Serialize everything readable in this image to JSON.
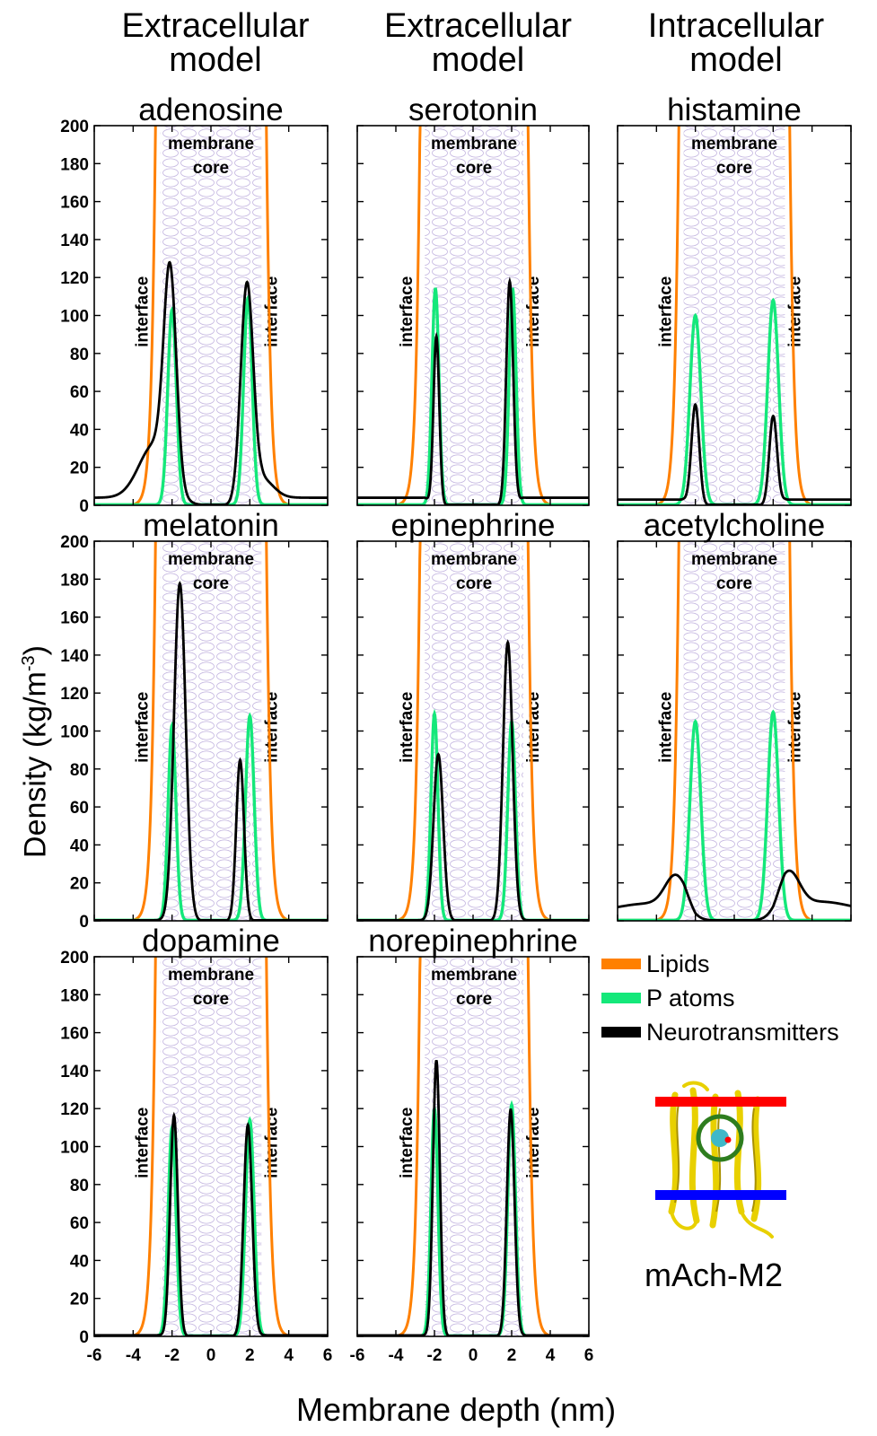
{
  "column_headers": [
    {
      "line1": "Extracellular",
      "line2": "model"
    },
    {
      "line1": "Extracellular",
      "line2": "model"
    },
    {
      "line1": "Intracellular",
      "line2": "model"
    }
  ],
  "ylabel_main": "Density (kg/m",
  "ylabel_exp": "-3",
  "ylabel_close": ")",
  "xlabel": "Membrane depth (nm)",
  "membrane_label": {
    "line1": "membrane",
    "line2": "core"
  },
  "interface_label": "interface",
  "legend": [
    {
      "label": "Lipids",
      "color": "#ff7f0e"
    },
    {
      "label": "P atoms",
      "color": "#00ee77"
    },
    {
      "label": "Neurotransmitters",
      "color": "#000000"
    }
  ],
  "protein_label": "mAch-M2",
  "colors": {
    "lipids": "#ff8000",
    "p_atoms": "#14e87a",
    "neuro": "#000000",
    "membrane_pattern": "#b8a8d8"
  },
  "chart_data": [
    {
      "type": "line",
      "title": "adenosine",
      "xlim": [
        -6,
        6
      ],
      "ylim": [
        0,
        200
      ],
      "y_ticks": [
        0,
        20,
        40,
        60,
        80,
        100,
        120,
        140,
        160,
        180,
        200
      ],
      "x_ticks": [
        -6,
        -4,
        -2,
        0,
        2,
        4,
        6
      ],
      "show_y_ticks": true,
      "show_x_ticks": false,
      "lipid_edges": [
        -2.6,
        2.6
      ],
      "series": [
        {
          "name": "P atoms",
          "peaks": [
            {
              "x": -2.0,
              "height": 103,
              "width": 0.22
            },
            {
              "x": 1.9,
              "height": 109,
              "width": 0.22
            }
          ],
          "base": 0.3
        },
        {
          "name": "Neurotransmitters",
          "peaks": [
            {
              "x": -2.1,
              "height": 114,
              "width": 0.32
            },
            {
              "x": 1.85,
              "height": 117,
              "width": 0.32
            }
          ],
          "shoulders": [
            {
              "x": -2.9,
              "height": 28,
              "width": 0.8
            },
            {
              "x": 2.6,
              "height": 10,
              "width": 0.6
            }
          ],
          "base": 4
        }
      ]
    },
    {
      "type": "line",
      "title": "serotonin",
      "xlim": [
        -6,
        6
      ],
      "ylim": [
        0,
        200
      ],
      "y_ticks": [
        0,
        20,
        40,
        60,
        80,
        100,
        120,
        140,
        160,
        180,
        200
      ],
      "x_ticks": [
        -6,
        -4,
        -2,
        0,
        2,
        4,
        6
      ],
      "show_y_ticks": false,
      "show_x_ticks": false,
      "lipid_edges": [
        -2.5,
        2.6
      ],
      "series": [
        {
          "name": "P atoms",
          "peaks": [
            {
              "x": -1.95,
              "height": 114,
              "width": 0.18
            },
            {
              "x": 2.05,
              "height": 114,
              "width": 0.18
            }
          ],
          "base": 0.3
        },
        {
          "name": "Neurotransmitters",
          "peaks": [
            {
              "x": -1.9,
              "height": 93,
              "width": 0.15
            },
            {
              "x": 1.9,
              "height": 122,
              "width": 0.18
            }
          ],
          "base": 4
        }
      ]
    },
    {
      "type": "line",
      "title": "histamine",
      "xlim": [
        -6,
        6
      ],
      "ylim": [
        0,
        200
      ],
      "y_ticks": [
        0,
        20,
        40,
        60,
        80,
        100,
        120,
        140,
        160,
        180,
        200
      ],
      "x_ticks": [
        -6,
        -4,
        -2,
        0,
        2,
        4,
        6
      ],
      "show_y_ticks": false,
      "show_x_ticks": false,
      "lipid_edges": [
        -2.6,
        2.6
      ],
      "series": [
        {
          "name": "P atoms",
          "peaks": [
            {
              "x": -2.0,
              "height": 100,
              "width": 0.28
            },
            {
              "x": 2.0,
              "height": 108,
              "width": 0.28
            }
          ],
          "base": 0.3
        },
        {
          "name": "Neurotransmitters",
          "peaks": [
            {
              "x": -2.0,
              "height": 56,
              "width": 0.2
            },
            {
              "x": 2.0,
              "height": 50,
              "width": 0.2
            }
          ],
          "base": 3
        }
      ]
    },
    {
      "type": "line",
      "title": "melatonin",
      "xlim": [
        -6,
        6
      ],
      "ylim": [
        0,
        200
      ],
      "y_ticks": [
        0,
        20,
        40,
        60,
        80,
        100,
        120,
        140,
        160,
        180,
        200
      ],
      "x_ticks": [
        -6,
        -4,
        -2,
        0,
        2,
        4,
        6
      ],
      "show_y_ticks": true,
      "show_x_ticks": false,
      "lipid_edges": [
        -2.6,
        2.6
      ],
      "series": [
        {
          "name": "P atoms",
          "peaks": [
            {
              "x": -2.0,
              "height": 103,
              "width": 0.2
            },
            {
              "x": 2.0,
              "height": 108,
              "width": 0.22
            }
          ],
          "base": 0.3
        },
        {
          "name": "Neurotransmitters",
          "peaks": [
            {
              "x": -1.6,
              "height": 178,
              "width": 0.3
            },
            {
              "x": 1.5,
              "height": 85,
              "width": 0.2
            }
          ],
          "base": 0.3
        }
      ]
    },
    {
      "type": "line",
      "title": "epinephrine",
      "xlim": [
        -6,
        6
      ],
      "ylim": [
        0,
        200
      ],
      "y_ticks": [
        0,
        20,
        40,
        60,
        80,
        100,
        120,
        140,
        160,
        180,
        200
      ],
      "x_ticks": [
        -6,
        -4,
        -2,
        0,
        2,
        4,
        6
      ],
      "show_y_ticks": false,
      "show_x_ticks": false,
      "lipid_edges": [
        -2.5,
        2.6
      ],
      "series": [
        {
          "name": "P atoms",
          "peaks": [
            {
              "x": -2.0,
              "height": 109,
              "width": 0.18
            },
            {
              "x": 2.0,
              "height": 105,
              "width": 0.2
            }
          ],
          "base": 0.3
        },
        {
          "name": "Neurotransmitters",
          "peaks": [
            {
              "x": -1.8,
              "height": 88,
              "width": 0.25
            },
            {
              "x": 1.8,
              "height": 147,
              "width": 0.25
            }
          ],
          "base": 0.3
        }
      ]
    },
    {
      "type": "line",
      "title": "acetylcholine",
      "xlim": [
        -6,
        6
      ],
      "ylim": [
        0,
        200
      ],
      "y_ticks": [
        0,
        20,
        40,
        60,
        80,
        100,
        120,
        140,
        160,
        180,
        200
      ],
      "x_ticks": [
        -6,
        -4,
        -2,
        0,
        2,
        4,
        6
      ],
      "show_y_ticks": false,
      "show_x_ticks": false,
      "lipid_edges": [
        -2.6,
        2.6
      ],
      "series": [
        {
          "name": "P atoms",
          "peaks": [
            {
              "x": -2.0,
              "height": 105,
              "width": 0.28
            },
            {
              "x": 2.0,
              "height": 110,
              "width": 0.28
            }
          ],
          "base": 0.3
        },
        {
          "name": "Neurotransmitters",
          "peaks": [
            {
              "x": -3.0,
              "height": 22,
              "width": 0.55
            },
            {
              "x": 2.8,
              "height": 24,
              "width": 0.55
            }
          ],
          "shoulders": [
            {
              "x": -4.5,
              "height": 4,
              "width": 1.4
            },
            {
              "x": 4.5,
              "height": 5,
              "width": 1.4
            }
          ],
          "base": 5
        }
      ]
    },
    {
      "type": "line",
      "title": "dopamine",
      "xlim": [
        -6,
        6
      ],
      "ylim": [
        0,
        200
      ],
      "y_ticks": [
        0,
        20,
        40,
        60,
        80,
        100,
        120,
        140,
        160,
        180,
        200
      ],
      "x_ticks": [
        -6,
        -4,
        -2,
        0,
        2,
        4,
        6
      ],
      "show_y_ticks": true,
      "show_x_ticks": true,
      "lipid_edges": [
        -2.6,
        2.6
      ],
      "series": [
        {
          "name": "P atoms",
          "peaks": [
            {
              "x": -2.0,
              "height": 110,
              "width": 0.2
            },
            {
              "x": 2.0,
              "height": 114,
              "width": 0.22
            }
          ],
          "base": 0.3
        },
        {
          "name": "Neurotransmitters",
          "peaks": [
            {
              "x": -1.9,
              "height": 117,
              "width": 0.2
            },
            {
              "x": 1.9,
              "height": 112,
              "width": 0.22
            }
          ],
          "base": 0.6
        }
      ]
    },
    {
      "type": "line",
      "title": "norepinephrine",
      "xlim": [
        -6,
        6
      ],
      "ylim": [
        0,
        200
      ],
      "y_ticks": [
        0,
        20,
        40,
        60,
        80,
        100,
        120,
        140,
        160,
        180,
        200
      ],
      "x_ticks": [
        -6,
        -4,
        -2,
        0,
        2,
        4,
        6
      ],
      "show_y_ticks": false,
      "show_x_ticks": true,
      "lipid_edges": [
        -2.5,
        2.6
      ],
      "series": [
        {
          "name": "P atoms",
          "peaks": [
            {
              "x": -2.0,
              "height": 120,
              "width": 0.18
            },
            {
              "x": 2.0,
              "height": 122,
              "width": 0.2
            }
          ],
          "base": 0.3
        },
        {
          "name": "Neurotransmitters",
          "peaks": [
            {
              "x": -1.9,
              "height": 146,
              "width": 0.18
            },
            {
              "x": 1.95,
              "height": 120,
              "width": 0.2
            }
          ],
          "base": 0.5
        }
      ]
    }
  ]
}
